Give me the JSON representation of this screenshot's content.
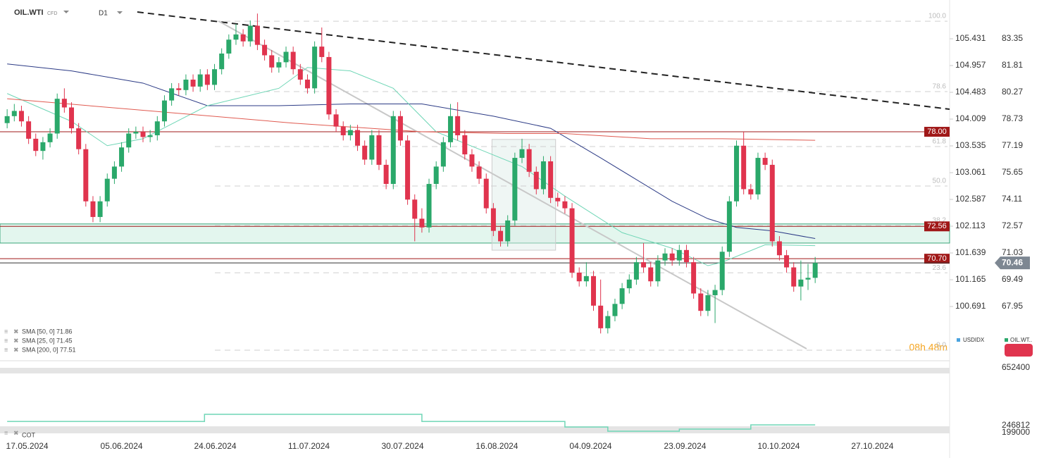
{
  "ui": {
    "symbol": "OIL.WTI",
    "symbol_type": "CFD",
    "interval": "D1",
    "compare_symbol": "USDIDX",
    "main_symbol_short": "OIL.WT..",
    "countdown": "08h 48m"
  },
  "chart_data": {
    "type": "candlestick",
    "up_color": "#2aa86a",
    "down_color": "#e0344e",
    "xlim": [
      -1,
      131.8
    ],
    "xticks": [
      {
        "value": 2.8,
        "label": "17.05.2024"
      },
      {
        "value": 16,
        "label": "05.06.2024"
      },
      {
        "value": 29.1,
        "label": "24.06.2024"
      },
      {
        "value": 42.2,
        "label": "11.07.2024"
      },
      {
        "value": 55.3,
        "label": "30.07.2024"
      },
      {
        "value": 68.5,
        "label": "16.08.2024"
      },
      {
        "value": 81.6,
        "label": "04.09.2024"
      },
      {
        "value": 94.8,
        "label": "23.09.2024"
      },
      {
        "value": 107.9,
        "label": "10.10.2024"
      },
      {
        "value": 121,
        "label": "27.10.2024"
      }
    ],
    "ylim": [
      64.83,
      85.58
    ],
    "yticks": [
      83.35,
      81.81,
      80.27,
      78.73,
      77.19,
      75.65,
      74.11,
      72.57,
      71.03,
      69.49,
      67.95
    ],
    "y2lim": [
      99.731,
      106.117
    ],
    "y2ticks": [
      105.431,
      104.957,
      104.483,
      104.009,
      103.535,
      103.061,
      102.587,
      102.113,
      101.639,
      101.165,
      100.691
    ],
    "ohlc": [
      [
        78.5,
        79.3,
        78.2,
        78.9
      ],
      [
        78.9,
        79.6,
        78.6,
        79.2
      ],
      [
        79.2,
        79.5,
        78.3,
        78.6
      ],
      [
        78.6,
        78.9,
        77.3,
        77.6
      ],
      [
        77.6,
        77.9,
        76.6,
        76.9
      ],
      [
        76.9,
        77.7,
        76.4,
        77.4
      ],
      [
        77.4,
        78.2,
        77.1,
        77.9
      ],
      [
        77.9,
        80.2,
        77.6,
        79.9
      ],
      [
        79.9,
        80.5,
        79.1,
        79.4
      ],
      [
        79.4,
        79.7,
        77.9,
        78.2
      ],
      [
        78.2,
        78.5,
        76.7,
        77.0
      ],
      [
        77.0,
        77.3,
        73.7,
        74.0
      ],
      [
        74.0,
        74.3,
        72.8,
        73.1
      ],
      [
        73.1,
        74.3,
        72.8,
        74.0
      ],
      [
        74.0,
        75.6,
        73.7,
        75.3
      ],
      [
        75.3,
        76.3,
        75.0,
        76.0
      ],
      [
        76.0,
        77.4,
        75.7,
        77.1
      ],
      [
        77.1,
        78.2,
        76.8,
        77.9
      ],
      [
        77.9,
        78.3,
        77.6,
        78.0
      ],
      [
        78.0,
        78.3,
        77.4,
        77.7
      ],
      [
        77.7,
        78.1,
        77.4,
        77.8
      ],
      [
        77.8,
        78.9,
        77.5,
        78.6
      ],
      [
        78.6,
        80.1,
        78.3,
        79.8
      ],
      [
        79.8,
        80.8,
        79.5,
        80.5
      ],
      [
        80.5,
        80.8,
        80.1,
        80.4
      ],
      [
        80.4,
        81.3,
        80.1,
        81.0
      ],
      [
        81.0,
        81.3,
        80.3,
        80.6
      ],
      [
        80.6,
        81.6,
        80.3,
        81.3
      ],
      [
        81.3,
        81.6,
        80.4,
        80.7
      ],
      [
        80.7,
        81.9,
        80.4,
        81.6
      ],
      [
        81.6,
        82.8,
        81.3,
        82.5
      ],
      [
        82.5,
        83.6,
        82.2,
        83.3
      ],
      [
        83.3,
        84.2,
        83.0,
        83.6
      ],
      [
        83.6,
        83.9,
        82.9,
        83.2
      ],
      [
        83.2,
        84.4,
        82.9,
        84.1
      ],
      [
        84.1,
        84.8,
        82.7,
        83.0
      ],
      [
        83.0,
        83.3,
        82.1,
        82.4
      ],
      [
        82.4,
        82.7,
        81.4,
        81.7
      ],
      [
        81.7,
        82.3,
        81.4,
        82.0
      ],
      [
        82.0,
        82.9,
        81.7,
        82.6
      ],
      [
        82.6,
        82.9,
        81.3,
        81.6
      ],
      [
        81.6,
        81.9,
        80.7,
        81.0
      ],
      [
        81.0,
        81.3,
        80.2,
        80.5
      ],
      [
        80.5,
        83.2,
        80.2,
        82.9
      ],
      [
        82.9,
        84.0,
        82.0,
        82.3
      ],
      [
        82.3,
        82.6,
        78.7,
        79.0
      ],
      [
        79.0,
        79.3,
        78.0,
        78.3
      ],
      [
        78.3,
        78.6,
        77.5,
        77.8
      ],
      [
        77.8,
        78.4,
        77.5,
        78.1
      ],
      [
        78.1,
        78.4,
        76.9,
        77.2
      ],
      [
        77.2,
        77.5,
        76.1,
        76.4
      ],
      [
        76.4,
        78.1,
        76.1,
        77.8
      ],
      [
        77.8,
        78.1,
        75.8,
        76.1
      ],
      [
        76.1,
        76.4,
        74.7,
        75.0
      ],
      [
        75.0,
        79.2,
        74.7,
        78.9
      ],
      [
        78.9,
        79.2,
        77.2,
        77.5
      ],
      [
        77.5,
        77.8,
        73.8,
        74.1
      ],
      [
        74.1,
        74.4,
        71.7,
        73.0
      ],
      [
        73.0,
        73.6,
        72.2,
        72.5
      ],
      [
        72.5,
        75.3,
        72.2,
        75.0
      ],
      [
        75.0,
        76.3,
        74.7,
        76.0
      ],
      [
        76.0,
        77.7,
        75.7,
        77.4
      ],
      [
        77.4,
        79.6,
        77.1,
        78.9
      ],
      [
        78.9,
        79.7,
        77.5,
        77.8
      ],
      [
        77.8,
        78.1,
        76.4,
        76.7
      ],
      [
        76.7,
        77.0,
        75.7,
        76.0
      ],
      [
        76.0,
        76.3,
        75.0,
        75.3
      ],
      [
        75.3,
        75.6,
        73.3,
        73.6
      ],
      [
        73.6,
        73.9,
        72.0,
        72.3
      ],
      [
        72.3,
        72.6,
        71.4,
        71.7
      ],
      [
        71.7,
        73.2,
        71.4,
        72.9
      ],
      [
        72.9,
        76.8,
        72.6,
        76.5
      ],
      [
        76.5,
        77.6,
        76.2,
        77.0
      ],
      [
        77.0,
        77.3,
        75.4,
        75.7
      ],
      [
        75.7,
        76.0,
        74.4,
        74.7
      ],
      [
        74.7,
        76.6,
        74.4,
        76.3
      ],
      [
        76.3,
        76.6,
        73.9,
        74.2
      ],
      [
        74.2,
        74.5,
        73.7,
        74.0
      ],
      [
        74.0,
        74.3,
        73.3,
        73.6
      ],
      [
        73.6,
        73.9,
        69.6,
        69.9
      ],
      [
        69.9,
        70.2,
        69.1,
        69.4
      ],
      [
        69.4,
        70.5,
        69.1,
        69.7
      ],
      [
        69.7,
        70.0,
        67.7,
        68.0
      ],
      [
        68.0,
        69.5,
        66.4,
        66.7
      ],
      [
        66.7,
        67.7,
        66.4,
        67.4
      ],
      [
        67.4,
        68.4,
        67.1,
        68.1
      ],
      [
        68.1,
        69.3,
        67.8,
        69.0
      ],
      [
        69.0,
        69.8,
        68.7,
        69.5
      ],
      [
        69.5,
        70.8,
        69.2,
        70.5
      ],
      [
        70.5,
        71.6,
        69.9,
        70.2
      ],
      [
        70.2,
        70.5,
        69.1,
        69.4
      ],
      [
        69.4,
        70.9,
        69.1,
        70.6
      ],
      [
        70.6,
        71.3,
        70.3,
        71.0
      ],
      [
        71.0,
        71.3,
        70.3,
        70.6
      ],
      [
        70.6,
        71.5,
        70.3,
        71.2
      ],
      [
        71.2,
        71.5,
        70.2,
        70.5
      ],
      [
        70.5,
        70.8,
        68.4,
        68.7
      ],
      [
        68.7,
        69.0,
        67.4,
        67.7
      ],
      [
        67.7,
        68.9,
        67.4,
        68.6
      ],
      [
        68.6,
        69.2,
        67.0,
        68.9
      ],
      [
        68.9,
        71.4,
        68.6,
        71.1
      ],
      [
        71.1,
        74.3,
        70.8,
        74.0
      ],
      [
        74.0,
        77.5,
        73.7,
        77.2
      ],
      [
        77.2,
        78.0,
        74.4,
        74.7
      ],
      [
        74.7,
        75.0,
        74.1,
        74.4
      ],
      [
        74.4,
        76.8,
        74.1,
        76.5
      ],
      [
        76.5,
        76.8,
        75.8,
        76.1
      ],
      [
        76.1,
        76.4,
        71.4,
        71.7
      ],
      [
        71.7,
        72.0,
        70.6,
        70.9
      ],
      [
        70.9,
        71.2,
        69.9,
        70.2
      ],
      [
        70.2,
        70.5,
        68.8,
        69.1
      ],
      [
        69.1,
        70.6,
        68.3,
        69.5
      ],
      [
        69.5,
        70.4,
        68.9,
        69.6
      ],
      [
        69.6,
        70.8,
        69.3,
        70.46
      ]
    ],
    "series": [
      {
        "name": "SMA [50, 0] 71.86",
        "color": "#2b3a85",
        "x": [
          0,
          9,
          19,
          28,
          38,
          48,
          58,
          68,
          76,
          83,
          93,
          98,
          102,
          107,
          113
        ],
        "values": [
          81.9,
          81.5,
          80.8,
          79.5,
          79.5,
          79.6,
          79.6,
          78.9,
          78.2,
          76.5,
          74.0,
          73.0,
          72.5,
          72.3,
          71.86
        ]
      },
      {
        "name": "SMA [25, 0] 71.45",
        "color": "#6fd6b6",
        "x": [
          0,
          9,
          14,
          19,
          28,
          38,
          42,
          48,
          54,
          60,
          66,
          72,
          78,
          86,
          93,
          98,
          100,
          106,
          113
        ],
        "values": [
          80.2,
          78.6,
          77.2,
          77.6,
          79.5,
          80.5,
          81.7,
          81.5,
          80.5,
          78.0,
          77.0,
          76.0,
          74.3,
          72.2,
          71.3,
          70.3,
          70.5,
          71.5,
          71.45
        ]
      },
      {
        "name": "SMA [200, 0] 77.51",
        "color": "#e05a50",
        "x": [
          0,
          20,
          40,
          58,
          70,
          78,
          90,
          100,
          113
        ],
        "values": [
          79.9,
          79.2,
          78.5,
          78.0,
          77.9,
          77.9,
          77.6,
          77.6,
          77.51
        ]
      }
    ],
    "levels": [
      {
        "value": 78,
        "label": "78.00",
        "color": "#a01818"
      },
      {
        "value": 72.56,
        "label": "72.56",
        "color": "#a01818"
      },
      {
        "value": 70.7,
        "label": "70.70",
        "color": "#a01818"
      }
    ],
    "last_price": {
      "value": 70.46,
      "label": "70.46"
    },
    "zone": {
      "ylim": [
        71.6,
        72.7
      ]
    },
    "fib_levels": [
      {
        "value": 84.36,
        "label": "100.0"
      },
      {
        "value": 80.31,
        "label": "78.6"
      },
      {
        "value": 77.15,
        "label": "61.8"
      },
      {
        "value": 74.88,
        "label": "50.0"
      },
      {
        "value": 72.61,
        "label": "38.2"
      },
      {
        "value": 69.89,
        "label": "23.6"
      },
      {
        "value": 65.44,
        "label": "0.0"
      }
    ],
    "trendlines": [
      {
        "x": [
          18.2,
          131.8
        ],
        "values": [
          84.89,
          79.3
        ],
        "color": "#222222",
        "dash": true
      },
      {
        "x": [
          29.6,
          111.8
        ],
        "values": [
          84.36,
          65.52
        ],
        "color": "#c8c8c8",
        "dash": false
      }
    ],
    "box": {
      "x": [
        67.8,
        76.7
      ],
      "values": [
        77.56,
        71.19
      ]
    },
    "cot": {
      "name": "COT",
      "color": "#6fd6b6",
      "ylim": [
        167670,
        687000
      ],
      "yticks": [
        652400,
        246812,
        199000
      ],
      "x": [
        0,
        27.6,
        27.6,
        58,
        58,
        78,
        78,
        84,
        84,
        94,
        94,
        104,
        104,
        113
      ],
      "values": [
        276000,
        276000,
        326000,
        326000,
        276000,
        276000,
        237000,
        237000,
        207000,
        207000,
        222000,
        222000,
        252000,
        252000
      ]
    }
  }
}
